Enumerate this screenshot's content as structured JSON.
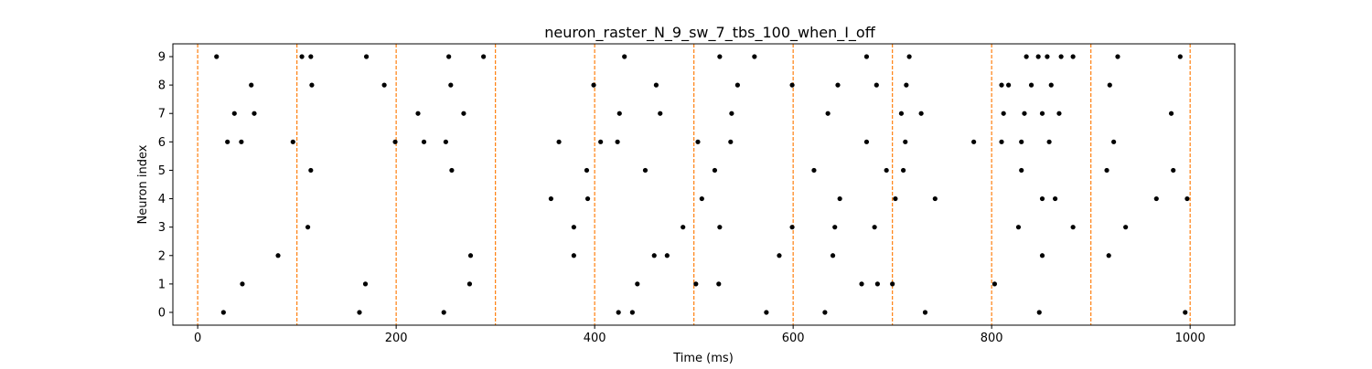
{
  "chart_data": {
    "type": "scatter",
    "title": "neuron_raster_N_9_sw_7_tbs_100_when_I_off",
    "xlabel": "Time (ms)",
    "ylabel": "Neuron index",
    "xlim": [
      -25,
      1045
    ],
    "ylim": [
      -0.45,
      9.45
    ],
    "xticks": [
      0,
      200,
      400,
      600,
      800,
      1000
    ],
    "yticks": [
      0,
      1,
      2,
      3,
      4,
      5,
      6,
      7,
      8,
      9
    ],
    "grid": false,
    "marker_color": "#000000",
    "vlines": {
      "x": [
        0,
        100,
        200,
        300,
        400,
        500,
        600,
        700,
        800,
        900,
        1000
      ],
      "color": "#ff7f0e",
      "style": "dashed"
    },
    "series": [
      {
        "points": [
          [
            26,
            0
          ],
          [
            163,
            0
          ],
          [
            248,
            0
          ],
          [
            424,
            0
          ],
          [
            438,
            0
          ],
          [
            573,
            0
          ],
          [
            632,
            0
          ],
          [
            733,
            0
          ],
          [
            848,
            0
          ],
          [
            995,
            0
          ],
          [
            45,
            1
          ],
          [
            169,
            1
          ],
          [
            274,
            1
          ],
          [
            443,
            1
          ],
          [
            502,
            1
          ],
          [
            525,
            1
          ],
          [
            669,
            1
          ],
          [
            685,
            1
          ],
          [
            700,
            1
          ],
          [
            803,
            1
          ],
          [
            81,
            2
          ],
          [
            275,
            2
          ],
          [
            379,
            2
          ],
          [
            460,
            2
          ],
          [
            473,
            2
          ],
          [
            586,
            2
          ],
          [
            640,
            2
          ],
          [
            851,
            2
          ],
          [
            918,
            2
          ],
          [
            111,
            3
          ],
          [
            379,
            3
          ],
          [
            489,
            3
          ],
          [
            526,
            3
          ],
          [
            599,
            3
          ],
          [
            642,
            3
          ],
          [
            682,
            3
          ],
          [
            827,
            3
          ],
          [
            882,
            3
          ],
          [
            935,
            3
          ],
          [
            356,
            4
          ],
          [
            393,
            4
          ],
          [
            508,
            4
          ],
          [
            647,
            4
          ],
          [
            703,
            4
          ],
          [
            743,
            4
          ],
          [
            851,
            4
          ],
          [
            864,
            4
          ],
          [
            966,
            4
          ],
          [
            997,
            4
          ],
          [
            114,
            5
          ],
          [
            256,
            5
          ],
          [
            392,
            5
          ],
          [
            451,
            5
          ],
          [
            521,
            5
          ],
          [
            621,
            5
          ],
          [
            694,
            5
          ],
          [
            711,
            5
          ],
          [
            830,
            5
          ],
          [
            916,
            5
          ],
          [
            983,
            5
          ],
          [
            30,
            6
          ],
          [
            44,
            6
          ],
          [
            96,
            6
          ],
          [
            199,
            6
          ],
          [
            228,
            6
          ],
          [
            250,
            6
          ],
          [
            364,
            6
          ],
          [
            406,
            6
          ],
          [
            423,
            6
          ],
          [
            504,
            6
          ],
          [
            537,
            6
          ],
          [
            674,
            6
          ],
          [
            713,
            6
          ],
          [
            782,
            6
          ],
          [
            810,
            6
          ],
          [
            830,
            6
          ],
          [
            858,
            6
          ],
          [
            923,
            6
          ],
          [
            37,
            7
          ],
          [
            57,
            7
          ],
          [
            222,
            7
          ],
          [
            268,
            7
          ],
          [
            425,
            7
          ],
          [
            466,
            7
          ],
          [
            538,
            7
          ],
          [
            635,
            7
          ],
          [
            709,
            7
          ],
          [
            729,
            7
          ],
          [
            812,
            7
          ],
          [
            833,
            7
          ],
          [
            851,
            7
          ],
          [
            868,
            7
          ],
          [
            981,
            7
          ],
          [
            54,
            8
          ],
          [
            115,
            8
          ],
          [
            188,
            8
          ],
          [
            255,
            8
          ],
          [
            399,
            8
          ],
          [
            462,
            8
          ],
          [
            544,
            8
          ],
          [
            599,
            8
          ],
          [
            645,
            8
          ],
          [
            684,
            8
          ],
          [
            714,
            8
          ],
          [
            810,
            8
          ],
          [
            817,
            8
          ],
          [
            840,
            8
          ],
          [
            860,
            8
          ],
          [
            919,
            8
          ],
          [
            19,
            9
          ],
          [
            105,
            9
          ],
          [
            114,
            9
          ],
          [
            170,
            9
          ],
          [
            253,
            9
          ],
          [
            288,
            9
          ],
          [
            430,
            9
          ],
          [
            526,
            9
          ],
          [
            561,
            9
          ],
          [
            674,
            9
          ],
          [
            717,
            9
          ],
          [
            835,
            9
          ],
          [
            847,
            9
          ],
          [
            856,
            9
          ],
          [
            870,
            9
          ],
          [
            882,
            9
          ],
          [
            927,
            9
          ],
          [
            990,
            9
          ]
        ]
      }
    ]
  }
}
